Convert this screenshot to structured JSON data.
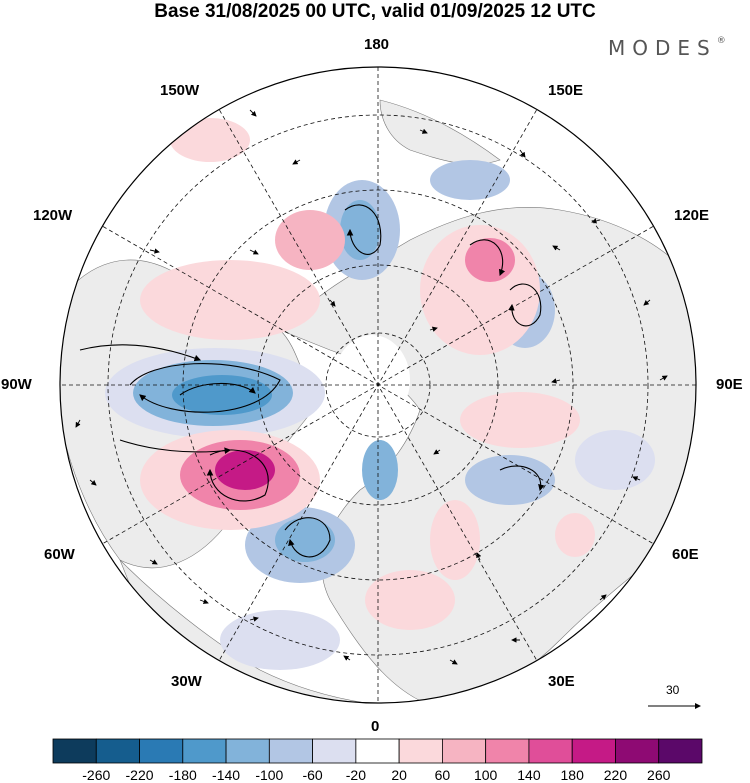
{
  "title": "Base 31/08/2025 00 UTC, valid 01/09/2025 12 UTC",
  "brand": {
    "name": "MODES",
    "mark": "®"
  },
  "longitude_labels": {
    "top": "180",
    "bottom": "0",
    "left": "90W",
    "right": "90E",
    "upper_left": "150W",
    "upper_right": "150E",
    "mid_left_upper": "120W",
    "mid_right_upper": "120E",
    "mid_left_lower": "60W",
    "mid_right_lower": "60E",
    "lower_left": "30W",
    "lower_right": "30E"
  },
  "reference_vector": {
    "value": "30"
  },
  "colorbar": {
    "ticks": [
      "-260",
      "-220",
      "-180",
      "-140",
      "-100",
      "-60",
      "-20",
      "20",
      "60",
      "100",
      "140",
      "180",
      "220",
      "260"
    ],
    "colors": [
      "#0d3b5c",
      "#155d8e",
      "#2a7ab4",
      "#4f99cb",
      "#82b3da",
      "#b2c6e4",
      "#dcdff0",
      "#ffffff",
      "#fbd9dc",
      "#f6b4c2",
      "#f084aa",
      "#e04e99",
      "#c51a86",
      "#8e0a73",
      "#5b0869"
    ]
  },
  "anomalies": [
    {
      "id": "low-90w",
      "sign": "negative",
      "intensity": 5
    },
    {
      "id": "high-70w",
      "sign": "positive",
      "intensity": 5
    },
    {
      "id": "low-45w",
      "sign": "negative",
      "intensity": 3
    },
    {
      "id": "low-170w",
      "sign": "negative",
      "intensity": 3
    },
    {
      "id": "high-130e",
      "sign": "positive",
      "intensity": 3
    },
    {
      "id": "low-110e",
      "sign": "negative",
      "intensity": 2
    },
    {
      "id": "low-60e",
      "sign": "negative",
      "intensity": 2
    },
    {
      "id": "high-35e",
      "sign": "positive",
      "intensity": 2
    },
    {
      "id": "low-20w",
      "sign": "negative",
      "intensity": 2
    }
  ]
}
